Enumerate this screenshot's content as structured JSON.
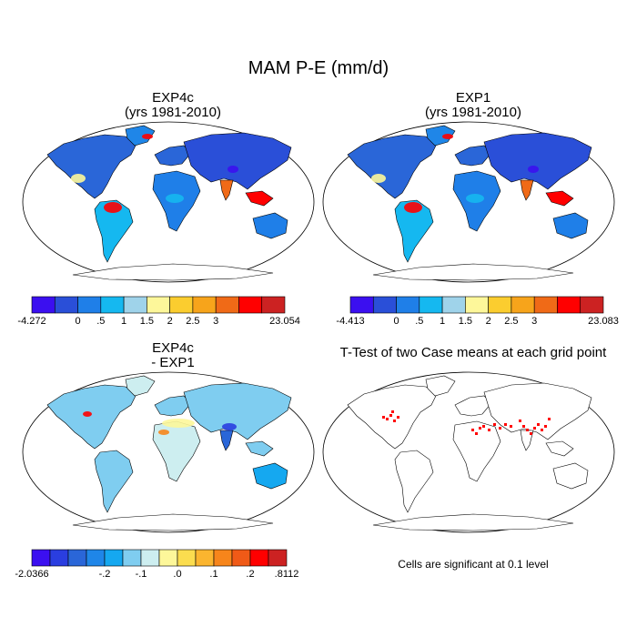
{
  "title": "MAM P-E (mm/d)",
  "panels": [
    {
      "id": "tl",
      "title_line1": "EXP4c",
      "title_line2": "(yrs 1981-2010)",
      "kind": "field"
    },
    {
      "id": "tr",
      "title_line1": "EXP1",
      "title_line2": "(yrs 1981-2010)",
      "kind": "field"
    },
    {
      "id": "bl",
      "title_line1": "EXP4c",
      "title_line2": "- EXP1",
      "kind": "diff"
    },
    {
      "id": "br",
      "title_line1": "T-Test of two Case means at each grid point",
      "title_line2": "",
      "kind": "ttest"
    }
  ],
  "colorbars": [
    {
      "id": "cb1",
      "colors": [
        "#3b0ff0",
        "#2a4fd8",
        "#1f7fe8",
        "#15b8f0",
        "#9fd3ea",
        "#fdf79a",
        "#fbcd2f",
        "#f7a41b",
        "#f06a17",
        "#ff0000",
        "#cc2222"
      ],
      "labels": [
        "-4.272",
        "0",
        ".5",
        "1",
        "1.5",
        "2",
        "2.5",
        "3",
        "23.054"
      ]
    },
    {
      "id": "cb2",
      "colors": [
        "#3b0ff0",
        "#2a4fd8",
        "#1f7fe8",
        "#15b8f0",
        "#9fd3ea",
        "#fdf79a",
        "#fbcd2f",
        "#f7a41b",
        "#f06a17",
        "#ff0000",
        "#cc2222"
      ],
      "labels": [
        "-4.413",
        "0",
        ".5",
        "1",
        "1.5",
        "2",
        "2.5",
        "3",
        "23.083"
      ]
    },
    {
      "id": "cb3",
      "colors": [
        "#3b0ff0",
        "#2a3ee0",
        "#2a66d8",
        "#1f86e8",
        "#15a8f0",
        "#7fcdf0",
        "#cdeef0",
        "#fdf79a",
        "#fbdd4f",
        "#fbb52f",
        "#f7851b",
        "#f05a17",
        "#ff0000",
        "#cc2222"
      ],
      "labels": [
        "-2.0366",
        "-.2",
        "-.1",
        ".0",
        ".1",
        ".2",
        ".8112"
      ]
    }
  ],
  "note": "Cells are significant at 0.1 level"
}
